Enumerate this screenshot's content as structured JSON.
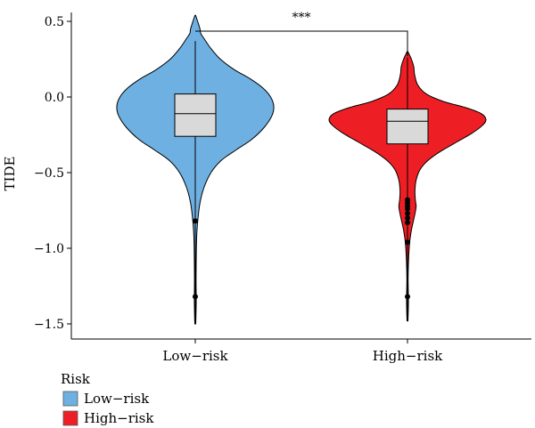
{
  "chart_data": {
    "type": "violin",
    "title": "",
    "xlabel": "",
    "ylabel": "TIDE",
    "ylim": [
      -1.55,
      0.6
    ],
    "yticks": [
      0.5,
      0.0,
      -0.5,
      -1.0,
      -1.5
    ],
    "ytick_labels": [
      "0.5",
      "0.0",
      "−0.5",
      "−1.0",
      "−1.5"
    ],
    "categories": [
      "Low−risk",
      "High−risk"
    ],
    "significance": "***",
    "legend": {
      "title": "Risk",
      "placement": "bottom-left",
      "items": [
        {
          "label": "Low−risk",
          "color": "#6fb0e2"
        },
        {
          "label": "High−risk",
          "color": "#ee1f24"
        }
      ]
    },
    "series": [
      {
        "category": "Low−risk",
        "color": "#6fb0e2",
        "box": {
          "q1": -0.26,
          "median": -0.11,
          "q3": 0.02
        },
        "whisker": [
          -0.79,
          0.37
        ],
        "outliers": [
          -0.82,
          -1.32
        ],
        "violin_range": [
          -1.5,
          0.54
        ],
        "density": [
          [
            -1.5,
            0.006
          ],
          [
            -1.35,
            0.012
          ],
          [
            -1.2,
            0.01
          ],
          [
            -1.0,
            0.014
          ],
          [
            -0.9,
            0.02
          ],
          [
            -0.8,
            0.035
          ],
          [
            -0.7,
            0.06
          ],
          [
            -0.6,
            0.11
          ],
          [
            -0.5,
            0.2
          ],
          [
            -0.42,
            0.33
          ],
          [
            -0.35,
            0.52
          ],
          [
            -0.28,
            0.72
          ],
          [
            -0.2,
            0.88
          ],
          [
            -0.12,
            0.98
          ],
          [
            -0.06,
            1.0
          ],
          [
            0.0,
            0.96
          ],
          [
            0.06,
            0.86
          ],
          [
            0.12,
            0.7
          ],
          [
            0.18,
            0.5
          ],
          [
            0.25,
            0.32
          ],
          [
            0.32,
            0.2
          ],
          [
            0.38,
            0.12
          ],
          [
            0.42,
            0.07
          ],
          [
            0.45,
            0.06
          ],
          [
            0.5,
            0.03
          ],
          [
            0.54,
            0.004
          ]
        ]
      },
      {
        "category": "High−risk",
        "color": "#ee1f24",
        "box": {
          "q1": -0.31,
          "median": -0.16,
          "q3": -0.08
        },
        "whisker": [
          -0.65,
          0.26
        ],
        "outliers": [
          -0.68,
          -0.7,
          -0.72,
          -0.74,
          -0.77,
          -0.8,
          -0.83,
          -0.96,
          -1.32
        ],
        "violin_range": [
          -1.48,
          0.3
        ],
        "density": [
          [
            -1.48,
            0.006
          ],
          [
            -1.35,
            0.012
          ],
          [
            -1.2,
            0.008
          ],
          [
            -1.05,
            0.016
          ],
          [
            -0.95,
            0.03
          ],
          [
            -0.88,
            0.05
          ],
          [
            -0.82,
            0.075
          ],
          [
            -0.76,
            0.1
          ],
          [
            -0.72,
            0.11
          ],
          [
            -0.68,
            0.1
          ],
          [
            -0.62,
            0.095
          ],
          [
            -0.55,
            0.11
          ],
          [
            -0.48,
            0.16
          ],
          [
            -0.42,
            0.26
          ],
          [
            -0.36,
            0.42
          ],
          [
            -0.3,
            0.62
          ],
          [
            -0.24,
            0.82
          ],
          [
            -0.19,
            0.95
          ],
          [
            -0.15,
            1.0
          ],
          [
            -0.11,
            0.94
          ],
          [
            -0.07,
            0.74
          ],
          [
            -0.03,
            0.46
          ],
          [
            0.02,
            0.24
          ],
          [
            0.08,
            0.13
          ],
          [
            0.15,
            0.09
          ],
          [
            0.2,
            0.08
          ],
          [
            0.25,
            0.05
          ],
          [
            0.3,
            0.005
          ]
        ]
      }
    ]
  }
}
